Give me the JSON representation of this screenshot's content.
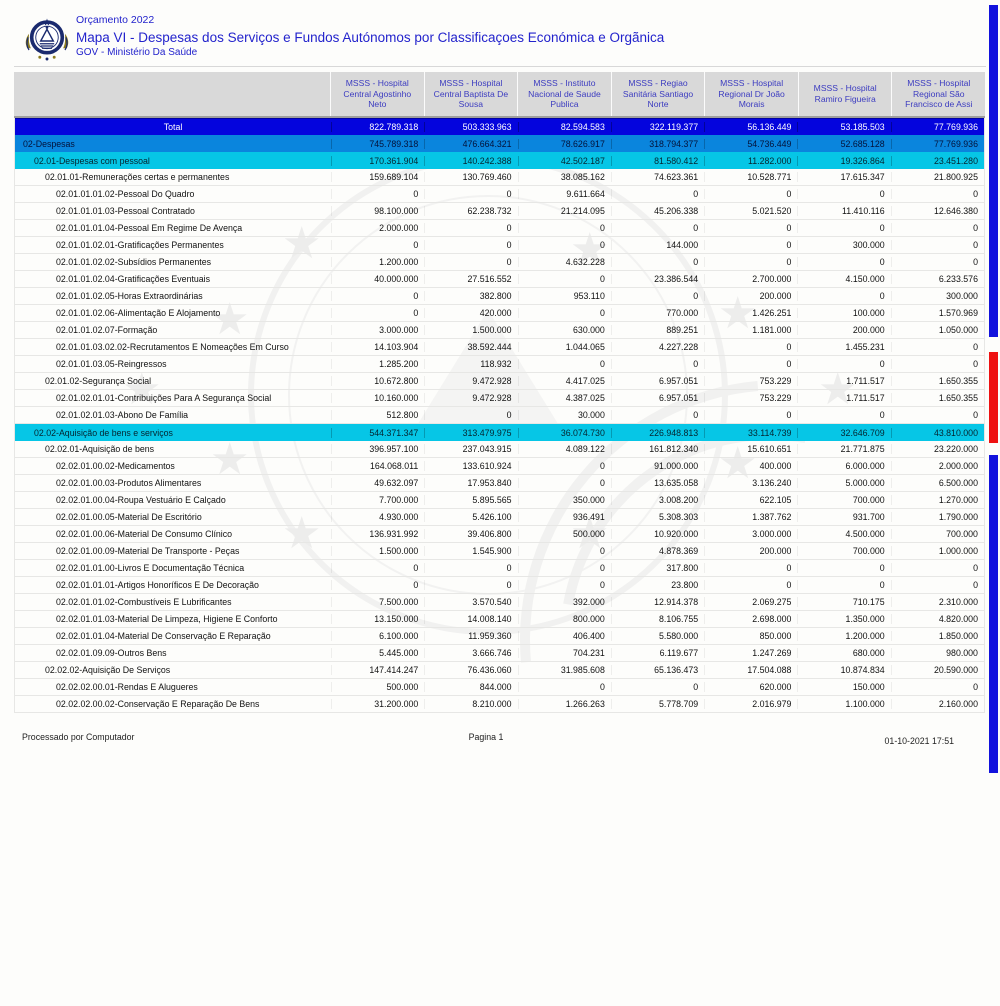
{
  "header": {
    "line1": "Orçamento 2022",
    "line2": "Mapa VI - Despesas dos Serviços e Fundos Autónomos por Classificaçoes Económica e Orgãnica",
    "line3": "GOV - Ministério Da Saúde"
  },
  "colors": {
    "title_blue": "#2323cc",
    "header_text_blue": "#3c3cc0",
    "total_row_bg": "#0404dd",
    "despesas_row_bg": "#0a85dd",
    "cyan_row_bg": "#06c6e6",
    "edge_bar_blue": "#1212dd",
    "edge_bar_red": "#ee1111"
  },
  "table": {
    "columns": [
      "MSSS - Hospital Central Agostinho Neto",
      "MSSS - Hospital Central Baptista De Sousa",
      "MSSS - Instituto Nacional de Saude Publica",
      "MSSS - Regiao Sanitária Santiago Norte",
      "MSSS - Hospital Regional Dr João Morais",
      "MSSS - Hospital Ramiro Figueira",
      "MSSS - Hospital Regional São Francisco de Assi"
    ],
    "total_row": {
      "label": "Total",
      "values": [
        "822.789.318",
        "503.333.963",
        "82.594.583",
        "322.119.377",
        "56.136.449",
        "53.185.503",
        "77.769.936"
      ]
    },
    "rows": [
      {
        "label": "02-Despesas",
        "level": 0,
        "style": "hblue",
        "values": [
          "745.789.318",
          "476.664.321",
          "78.626.917",
          "318.794.377",
          "54.736.449",
          "52.685.128",
          "77.769.936"
        ]
      },
      {
        "label": "02.01-Despesas com pessoal",
        "level": 1,
        "style": "hcyan",
        "values": [
          "170.361.904",
          "140.242.388",
          "42.502.187",
          "81.580.412",
          "11.282.000",
          "19.326.864",
          "23.451.280"
        ]
      },
      {
        "label": "02.01.01-Remunerações certas e permanentes",
        "level": 2,
        "style": "plain",
        "values": [
          "159.689.104",
          "130.769.460",
          "38.085.162",
          "74.623.361",
          "10.528.771",
          "17.615.347",
          "21.800.925"
        ]
      },
      {
        "label": "02.01.01.01.02-Pessoal Do Quadro",
        "level": 3,
        "style": "plain",
        "values": [
          "0",
          "0",
          "9.611.664",
          "0",
          "0",
          "0",
          "0"
        ]
      },
      {
        "label": "02.01.01.01.03-Pessoal Contratado",
        "level": 3,
        "style": "plain",
        "values": [
          "98.100.000",
          "62.238.732",
          "21.214.095",
          "45.206.338",
          "5.021.520",
          "11.410.116",
          "12.646.380"
        ]
      },
      {
        "label": "02.01.01.01.04-Pessoal Em Regime De Avença",
        "level": 3,
        "style": "plain",
        "values": [
          "2.000.000",
          "0",
          "0",
          "0",
          "0",
          "0",
          "0"
        ]
      },
      {
        "label": "02.01.01.02.01-Gratificações Permanentes",
        "level": 3,
        "style": "plain",
        "values": [
          "0",
          "0",
          "0",
          "144.000",
          "0",
          "300.000",
          "0"
        ]
      },
      {
        "label": "02.01.01.02.02-Subsídios Permanentes",
        "level": 3,
        "style": "plain",
        "values": [
          "1.200.000",
          "0",
          "4.632.228",
          "0",
          "0",
          "0",
          "0"
        ]
      },
      {
        "label": "02.01.01.02.04-Gratificações Eventuais",
        "level": 3,
        "style": "plain",
        "values": [
          "40.000.000",
          "27.516.552",
          "0",
          "23.386.544",
          "2.700.000",
          "4.150.000",
          "6.233.576"
        ]
      },
      {
        "label": "02.01.01.02.05-Horas Extraordinárias",
        "level": 3,
        "style": "plain",
        "values": [
          "0",
          "382.800",
          "953.110",
          "0",
          "200.000",
          "0",
          "300.000"
        ]
      },
      {
        "label": "02.01.01.02.06-Alimentação E Alojamento",
        "level": 3,
        "style": "plain",
        "values": [
          "0",
          "420.000",
          "0",
          "770.000",
          "1.426.251",
          "100.000",
          "1.570.969"
        ]
      },
      {
        "label": "02.01.01.02.07-Formação",
        "level": 3,
        "style": "plain",
        "values": [
          "3.000.000",
          "1.500.000",
          "630.000",
          "889.251",
          "1.181.000",
          "200.000",
          "1.050.000"
        ]
      },
      {
        "label": "02.01.01.03.02.02-Recrutamentos E Nomeações Em Curso",
        "level": 3,
        "style": "plain",
        "values": [
          "14.103.904",
          "38.592.444",
          "1.044.065",
          "4.227.228",
          "0",
          "1.455.231",
          "0"
        ]
      },
      {
        "label": "02.01.01.03.05-Reingressos",
        "level": 3,
        "style": "plain",
        "values": [
          "1.285.200",
          "118.932",
          "0",
          "0",
          "0",
          "0",
          "0"
        ]
      },
      {
        "label": "02.01.02-Segurança Social",
        "level": 2,
        "style": "plain",
        "values": [
          "10.672.800",
          "9.472.928",
          "4.417.025",
          "6.957.051",
          "753.229",
          "1.711.517",
          "1.650.355"
        ]
      },
      {
        "label": "02.01.02.01.01-Contribuições Para A Segurança Social",
        "level": 3,
        "style": "plain",
        "values": [
          "10.160.000",
          "9.472.928",
          "4.387.025",
          "6.957.051",
          "753.229",
          "1.711.517",
          "1.650.355"
        ]
      },
      {
        "label": "02.01.02.01.03-Abono De Família",
        "level": 3,
        "style": "plain",
        "values": [
          "512.800",
          "0",
          "30.000",
          "0",
          "0",
          "0",
          "0"
        ]
      },
      {
        "label": "02.02-Aquisição de bens e serviços",
        "level": 1,
        "style": "hcyan",
        "values": [
          "544.371.347",
          "313.479.975",
          "36.074.730",
          "226.948.813",
          "33.114.739",
          "32.646.709",
          "43.810.000"
        ]
      },
      {
        "label": "02.02.01-Aquisição de bens",
        "level": 2,
        "style": "plain",
        "values": [
          "396.957.100",
          "237.043.915",
          "4.089.122",
          "161.812.340",
          "15.610.651",
          "21.771.875",
          "23.220.000"
        ]
      },
      {
        "label": "02.02.01.00.02-Medicamentos",
        "level": 3,
        "style": "plain",
        "values": [
          "164.068.011",
          "133.610.924",
          "0",
          "91.000.000",
          "400.000",
          "6.000.000",
          "2.000.000"
        ]
      },
      {
        "label": "02.02.01.00.03-Produtos Alimentares",
        "level": 3,
        "style": "plain",
        "values": [
          "49.632.097",
          "17.953.840",
          "0",
          "13.635.058",
          "3.136.240",
          "5.000.000",
          "6.500.000"
        ]
      },
      {
        "label": "02.02.01.00.04-Roupa  Vestuário E Calçado",
        "level": 3,
        "style": "plain",
        "values": [
          "7.700.000",
          "5.895.565",
          "350.000",
          "3.008.200",
          "622.105",
          "700.000",
          "1.270.000"
        ]
      },
      {
        "label": "02.02.01.00.05-Material De Escritório",
        "level": 3,
        "style": "plain",
        "values": [
          "4.930.000",
          "5.426.100",
          "936.491",
          "5.308.303",
          "1.387.762",
          "931.700",
          "1.790.000"
        ]
      },
      {
        "label": "02.02.01.00.06-Material De Consumo Clínico",
        "level": 3,
        "style": "plain",
        "values": [
          "136.931.992",
          "39.406.800",
          "500.000",
          "10.920.000",
          "3.000.000",
          "4.500.000",
          "700.000"
        ]
      },
      {
        "label": "02.02.01.00.09-Material De Transporte - Peças",
        "level": 3,
        "style": "plain",
        "values": [
          "1.500.000",
          "1.545.900",
          "0",
          "4.878.369",
          "200.000",
          "700.000",
          "1.000.000"
        ]
      },
      {
        "label": "02.02.01.01.00-Livros E Documentação Técnica",
        "level": 3,
        "style": "plain",
        "values": [
          "0",
          "0",
          "0",
          "317.800",
          "0",
          "0",
          "0"
        ]
      },
      {
        "label": "02.02.01.01.01-Artigos Honoríficos E De Decoração",
        "level": 3,
        "style": "plain",
        "values": [
          "0",
          "0",
          "0",
          "23.800",
          "0",
          "0",
          "0"
        ]
      },
      {
        "label": "02.02.01.01.02-Combustíveis E Lubrificantes",
        "level": 3,
        "style": "plain",
        "values": [
          "7.500.000",
          "3.570.540",
          "392.000",
          "12.914.378",
          "2.069.275",
          "710.175",
          "2.310.000"
        ]
      },
      {
        "label": "02.02.01.01.03-Material De Limpeza, Higiene E Conforto",
        "level": 3,
        "style": "plain",
        "values": [
          "13.150.000",
          "14.008.140",
          "800.000",
          "8.106.755",
          "2.698.000",
          "1.350.000",
          "4.820.000"
        ]
      },
      {
        "label": "02.02.01.01.04-Material De Conservação E Reparação",
        "level": 3,
        "style": "plain",
        "values": [
          "6.100.000",
          "11.959.360",
          "406.400",
          "5.580.000",
          "850.000",
          "1.200.000",
          "1.850.000"
        ]
      },
      {
        "label": "02.02.01.09.09-Outros Bens",
        "level": 3,
        "style": "plain",
        "values": [
          "5.445.000",
          "3.666.746",
          "704.231",
          "6.119.677",
          "1.247.269",
          "680.000",
          "980.000"
        ]
      },
      {
        "label": "02.02.02-Aquisição De Serviços",
        "level": 2,
        "style": "plain",
        "values": [
          "147.414.247",
          "76.436.060",
          "31.985.608",
          "65.136.473",
          "17.504.088",
          "10.874.834",
          "20.590.000"
        ]
      },
      {
        "label": "02.02.02.00.01-Rendas E Alugueres",
        "level": 3,
        "style": "plain",
        "values": [
          "500.000",
          "844.000",
          "0",
          "0",
          "620.000",
          "150.000",
          "0"
        ]
      },
      {
        "label": "02.02.02.00.02-Conservação E Reparação De Bens",
        "level": 3,
        "style": "plain",
        "values": [
          "31.200.000",
          "8.210.000",
          "1.266.263",
          "5.778.709",
          "2.016.979",
          "1.100.000",
          "2.160.000"
        ]
      }
    ]
  },
  "footer": {
    "left": "Processado por Computador",
    "center": "Pagina 1",
    "right": "01-10-2021   17:51"
  }
}
